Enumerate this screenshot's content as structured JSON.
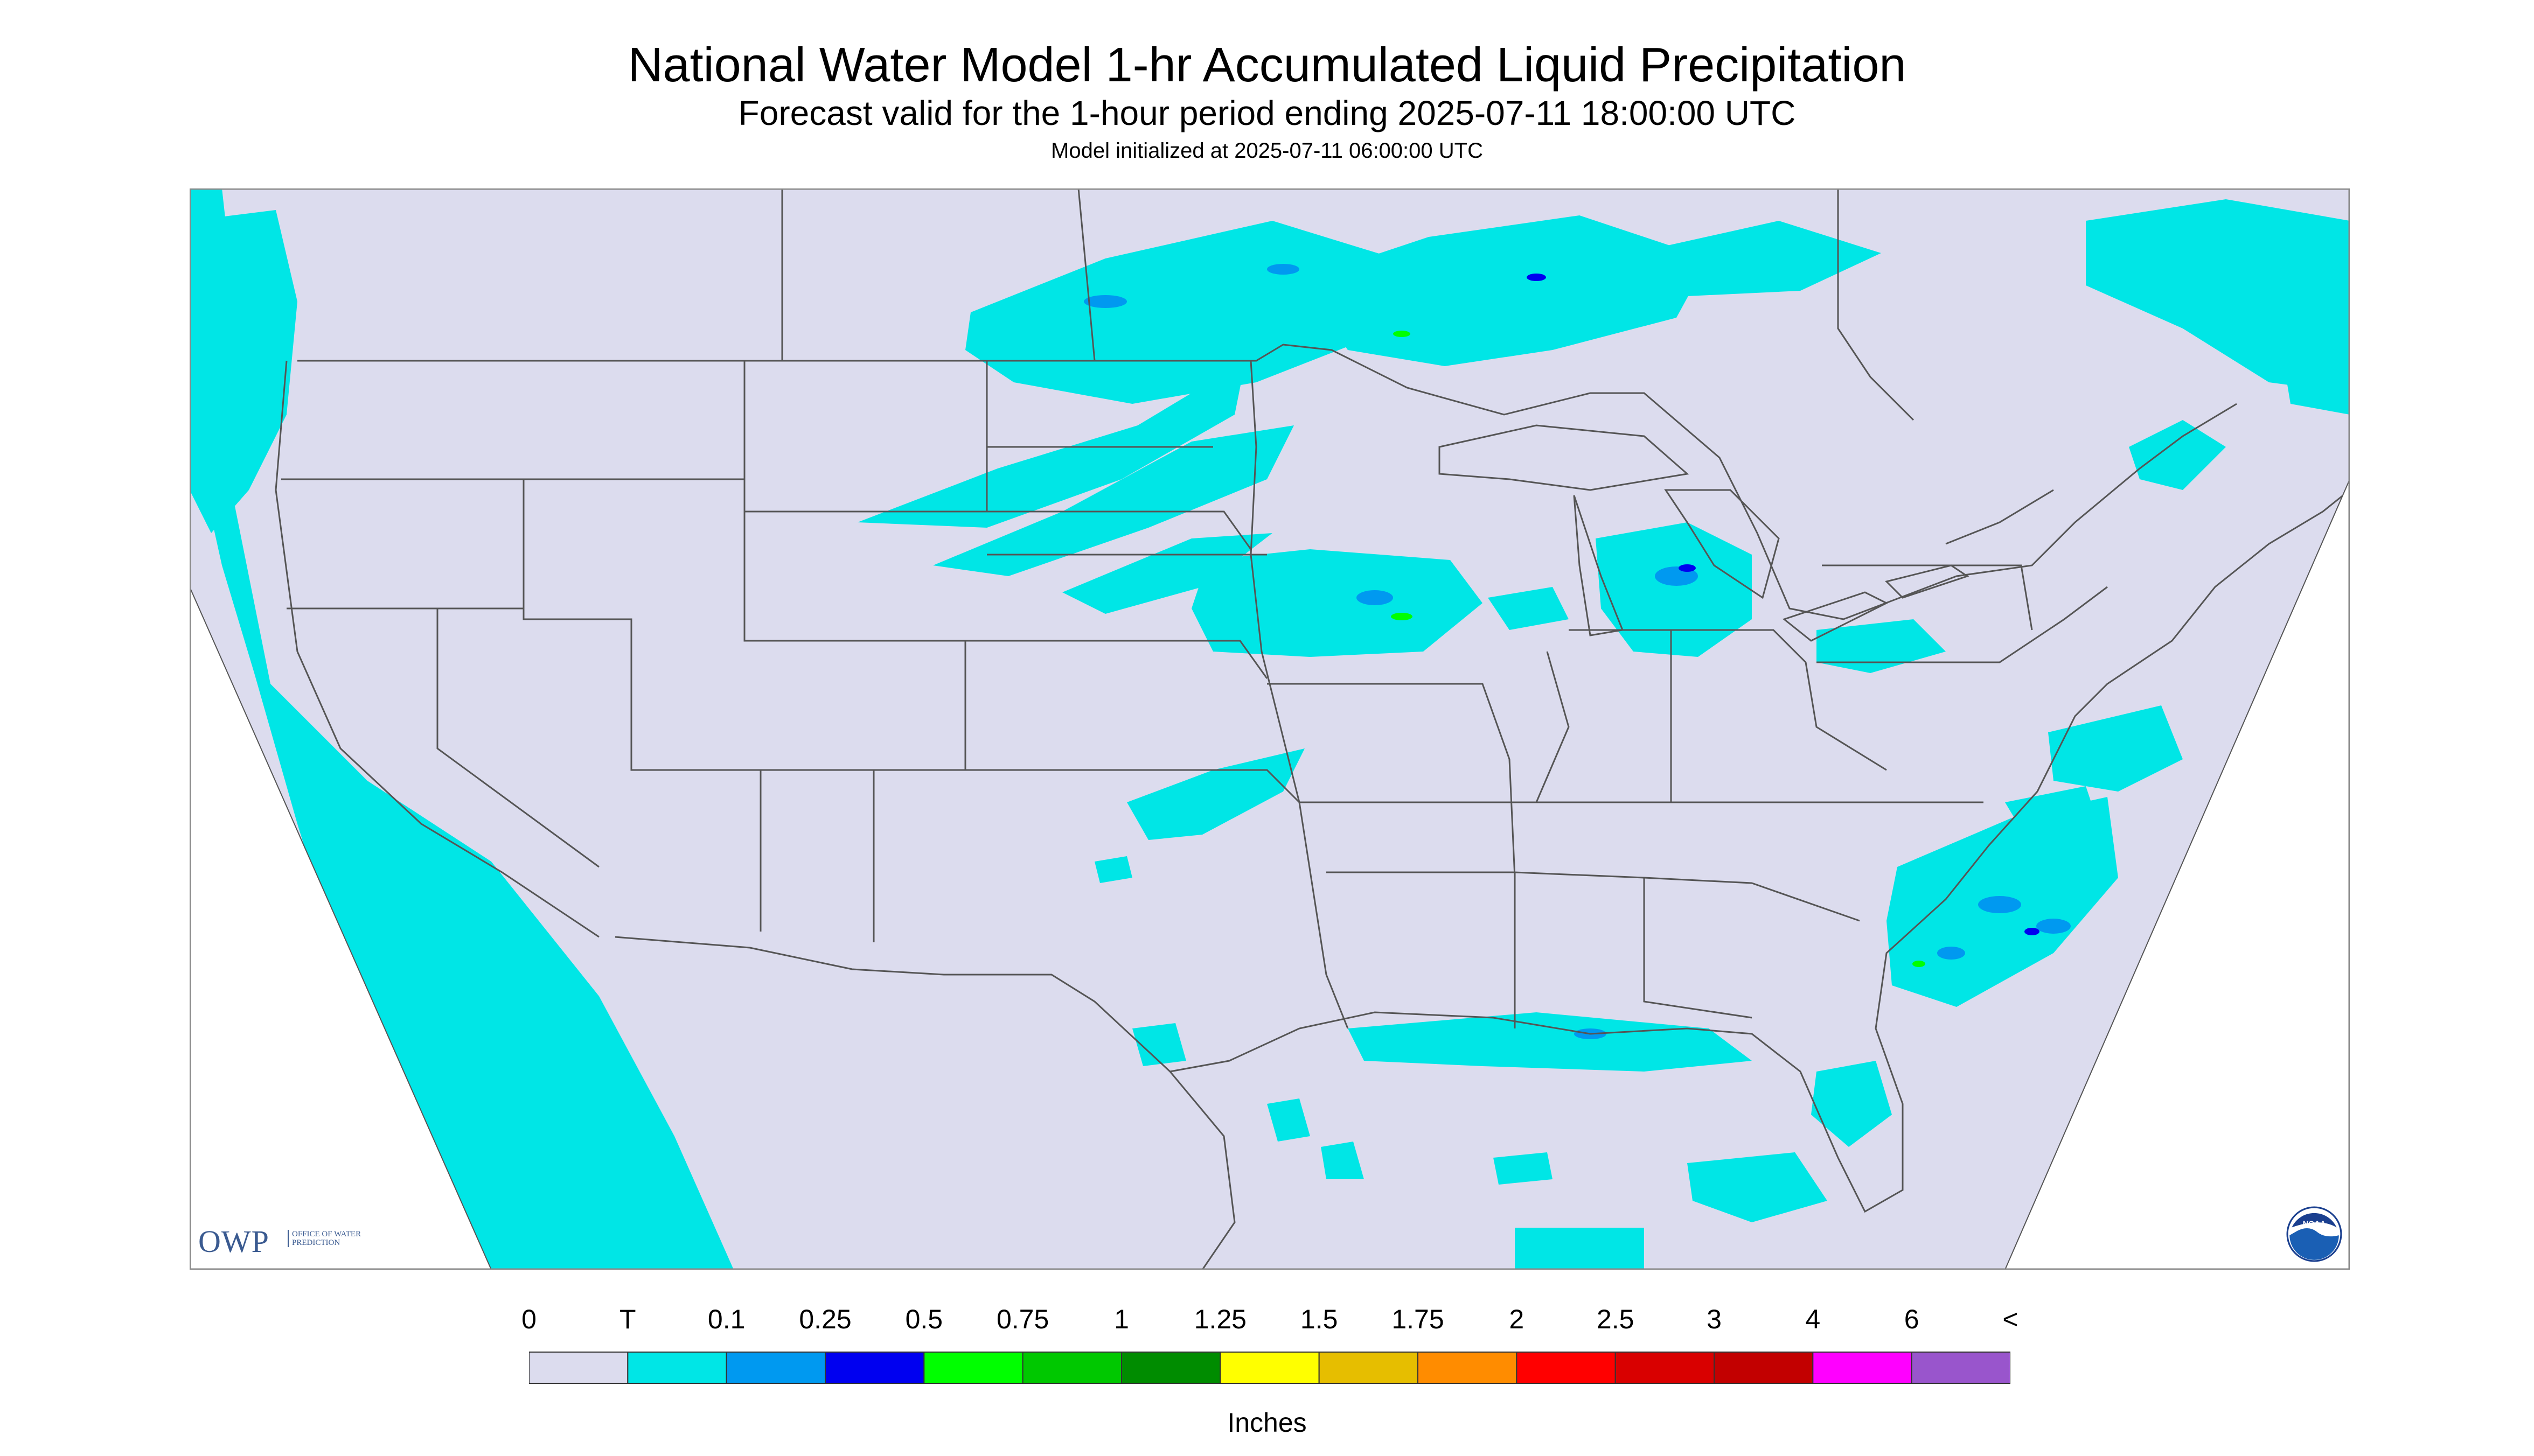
{
  "titles": {
    "main": "National Water Model 1-hr Accumulated Liquid Precipitation",
    "forecast": "Forecast valid for the 1-hour period ending 2025-07-11 18:00:00 UTC",
    "init": "Model initialized at 2025-07-11 06:00:00 UTC"
  },
  "map": {
    "background": "#dcdcee",
    "outside_domain": "#ffffff",
    "boundary_color": "#555555",
    "precip_areas": [
      {
        "region": "Pacific Ocean off Baja California and Mexico",
        "category": "T"
      },
      {
        "region": "Pacific Northwest coast",
        "category": "T"
      },
      {
        "region": "North Dakota / Manitoba / Saskatchewan",
        "category": "T",
        "max_category": "0.25"
      },
      {
        "region": "Lake of the Woods / northwest Ontario",
        "category": "T",
        "max_category": "0.75"
      },
      {
        "region": "Montana / South Dakota / Nebraska bands",
        "category": "T"
      },
      {
        "region": "Iowa / southern Minnesota",
        "category": "T",
        "max_category": "0.75"
      },
      {
        "region": "Lower Michigan",
        "category": "T",
        "max_category": "0.25"
      },
      {
        "region": "Oklahoma / north Texas",
        "category": "T"
      },
      {
        "region": "Gulf Coast and Gulf of Mexico",
        "category": "T",
        "max_category": "0.25"
      },
      {
        "region": "Atlantic off the Carolinas",
        "category": "T",
        "max_category": "0.75"
      },
      {
        "region": "Quebec / Maine / Nova Scotia",
        "category": "T"
      }
    ]
  },
  "legend": {
    "labels": [
      "0",
      "T",
      "0.1",
      "0.25",
      "0.5",
      "0.75",
      "1",
      "1.25",
      "1.5",
      "1.75",
      "2",
      "2.5",
      "3",
      "4",
      "6",
      "<"
    ],
    "colors": [
      "#dcdcee",
      "#00e6e6",
      "#0099f0",
      "#0000f0",
      "#00ff00",
      "#00c800",
      "#008c00",
      "#ffff00",
      "#e6be00",
      "#ff8c00",
      "#ff0000",
      "#d90000",
      "#c20000",
      "#ff00ff",
      "#9955cc"
    ],
    "units": "Inches"
  },
  "logos": {
    "owp_text": "OWP",
    "owp_sub": "OFFICE OF WATER PREDICTION",
    "noaa_text": "NOAA"
  }
}
